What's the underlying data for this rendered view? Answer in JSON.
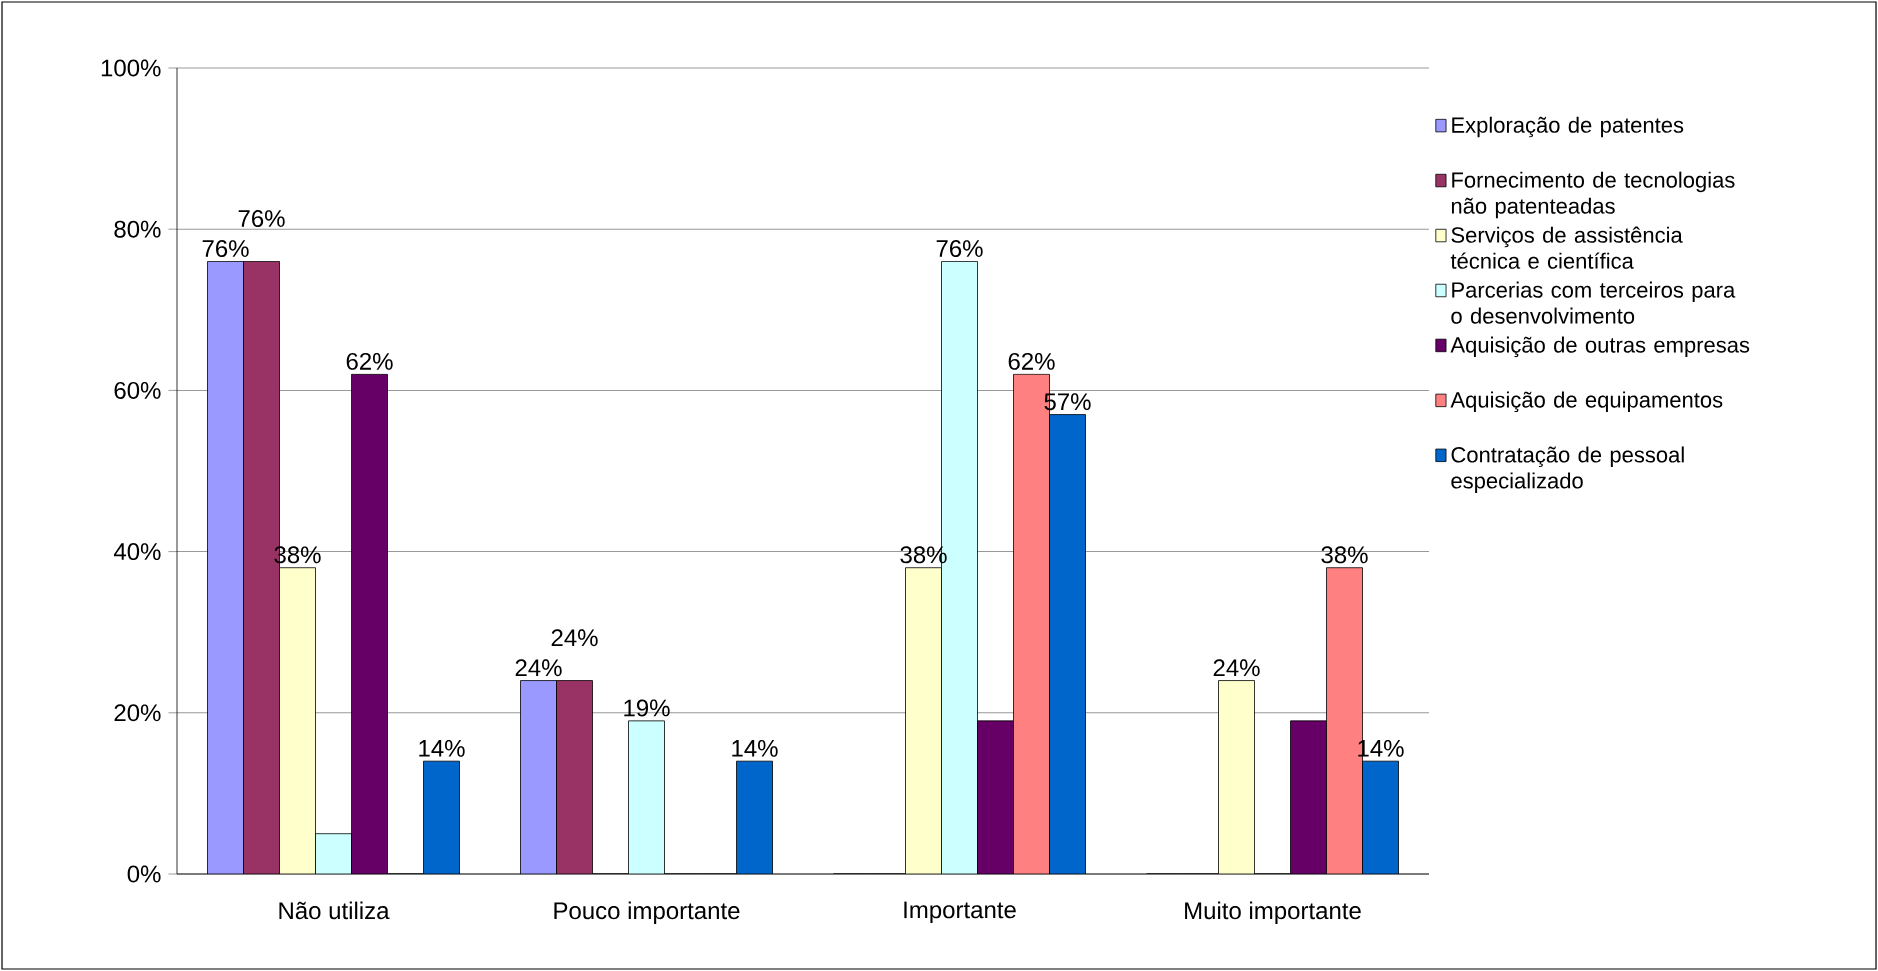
{
  "chart_data": {
    "type": "bar",
    "categories": [
      "Não utiliza",
      "Pouco importante",
      "Importante",
      "Muito importante"
    ],
    "series": [
      {
        "name": "Exploração de patentes",
        "color": "#9999ff",
        "values": [
          76,
          24,
          0,
          0
        ],
        "value_labels": [
          "76%",
          "24%",
          null,
          null
        ]
      },
      {
        "name": "Fornecimento de tecnologias não patenteadas",
        "color": "#993366",
        "values": [
          76,
          24,
          0,
          0
        ],
        "value_labels": [
          "76%",
          "24%",
          null,
          null
        ]
      },
      {
        "name": "Serviços de assistência técnica e científica",
        "color": "#ffffcc",
        "values": [
          38,
          0,
          38,
          24
        ],
        "value_labels": [
          "38%",
          null,
          "38%",
          "24%"
        ]
      },
      {
        "name": "Parcerias com terceiros para o desenvolvimento",
        "color": "#ccffff",
        "values": [
          5,
          19,
          76,
          0
        ],
        "value_labels": [
          null,
          "19%",
          "76%",
          null
        ]
      },
      {
        "name": "Aquisição de outras empresas",
        "color": "#660066",
        "values": [
          62,
          0,
          19,
          19
        ],
        "value_labels": [
          "62%",
          null,
          null,
          null
        ]
      },
      {
        "name": "Aquisição de equipamentos",
        "color": "#ff8080",
        "values": [
          0,
          0,
          62,
          38
        ],
        "value_labels": [
          null,
          null,
          "62%",
          "38%"
        ]
      },
      {
        "name": "Contratação de pessoal especializado",
        "color": "#0066cc",
        "values": [
          14,
          14,
          57,
          14
        ],
        "value_labels": [
          "14%",
          "14%",
          "57%",
          "14%"
        ]
      }
    ],
    "ylim": [
      0,
      100
    ],
    "yticks": [
      {
        "value": 0,
        "label": "0%"
      },
      {
        "value": 20,
        "label": "20%"
      },
      {
        "value": 40,
        "label": "40%"
      },
      {
        "value": 60,
        "label": "60%"
      },
      {
        "value": 80,
        "label": "80%"
      },
      {
        "value": 100,
        "label": "100%"
      }
    ],
    "grid": "y",
    "legend": "right"
  }
}
